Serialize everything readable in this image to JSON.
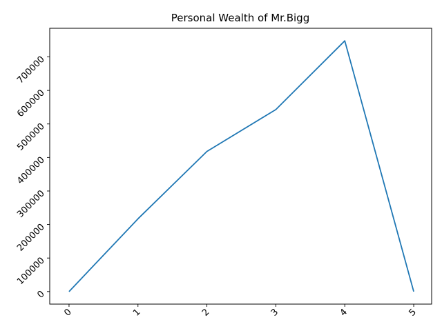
{
  "chart_data": {
    "type": "line",
    "title": "Personal Wealth of Mr.Bigg",
    "xlabel": "",
    "ylabel": "",
    "x": [
      0,
      1,
      2,
      3,
      4,
      5
    ],
    "series": [
      {
        "values": [
          0,
          217000,
          418000,
          543000,
          748000,
          0
        ],
        "color": "#1f77b4"
      }
    ],
    "xticks": [
      "0",
      "1",
      "2",
      "3",
      "4",
      "5"
    ],
    "yticks": [
      "0",
      "100000",
      "200000",
      "300000",
      "400000",
      "500000",
      "600000",
      "700000"
    ],
    "xlim": [
      -0.28,
      5.26
    ],
    "ylim": [
      -37400,
      785400
    ],
    "grid": false,
    "tick_label_rotation": 45
  }
}
